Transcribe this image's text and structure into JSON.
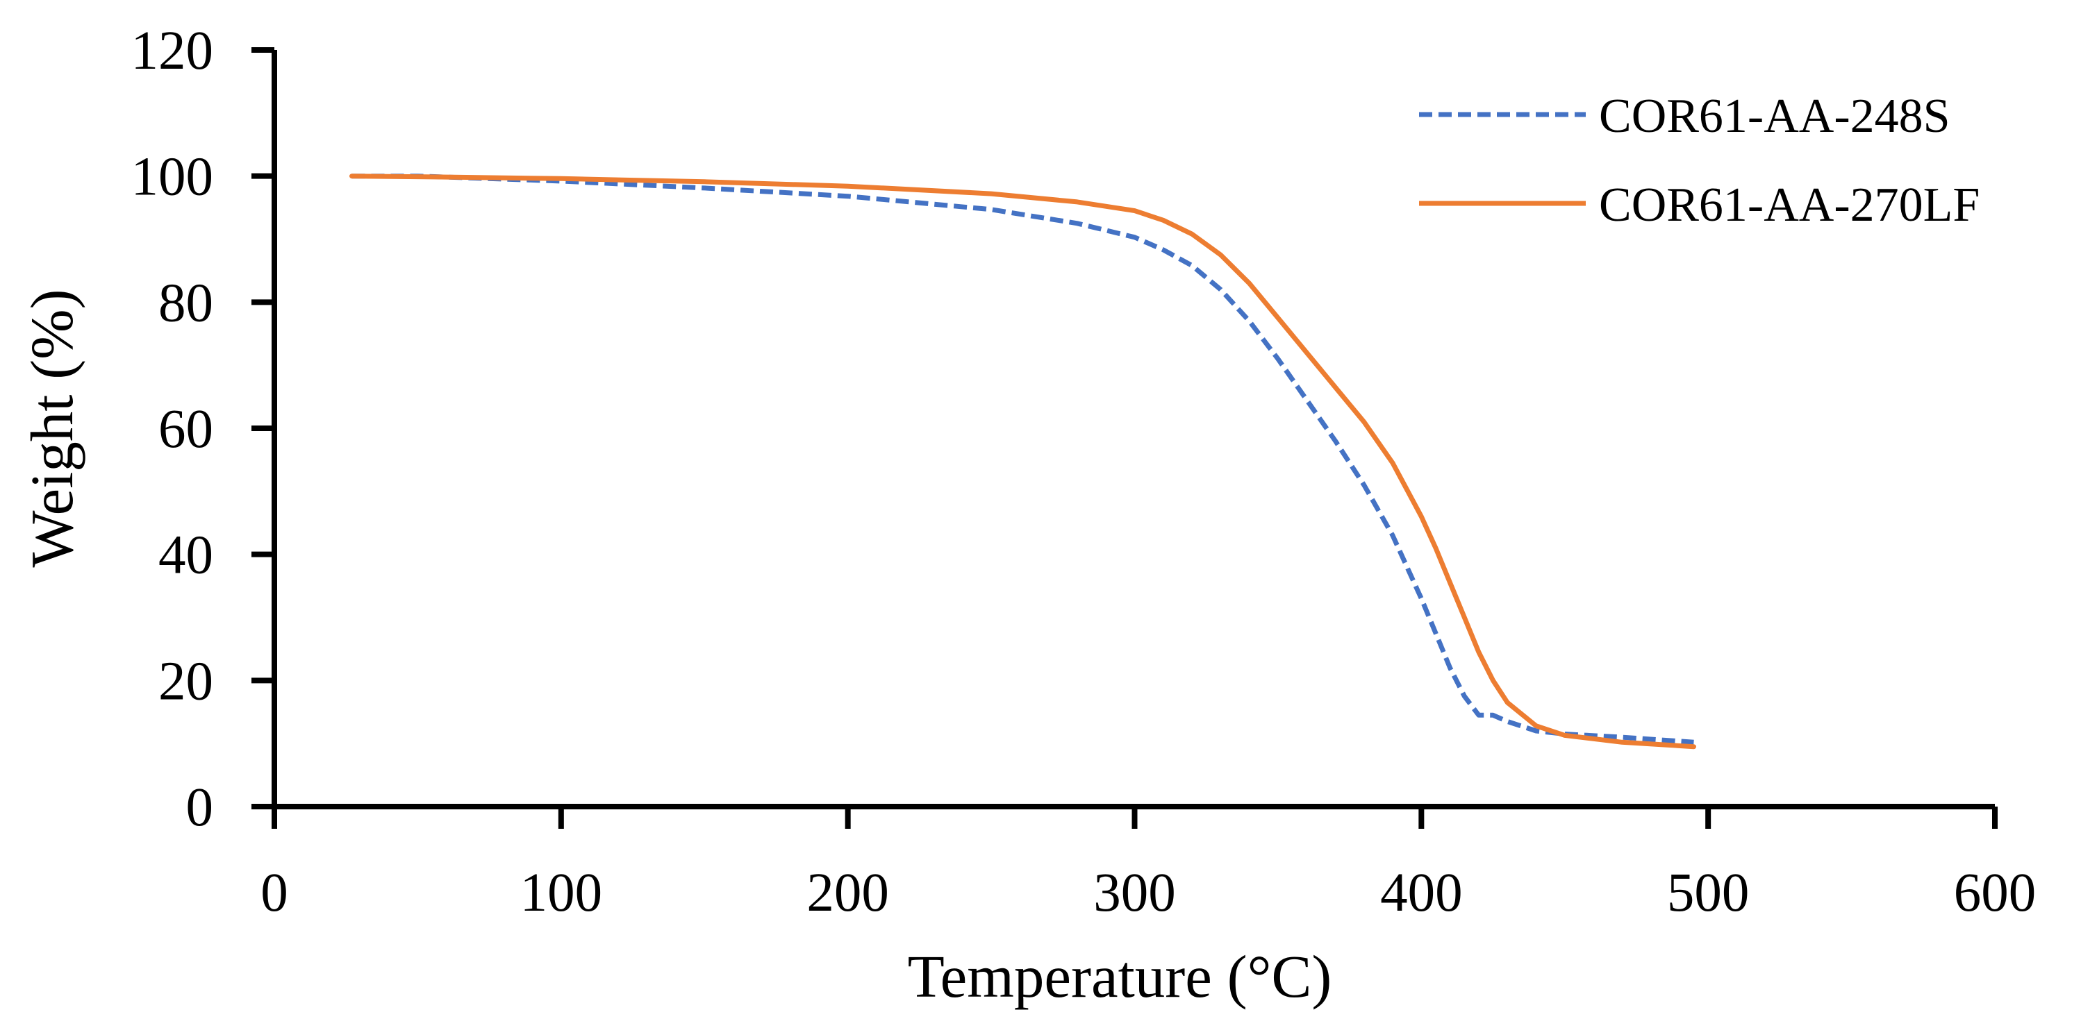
{
  "chart_data": {
    "type": "line",
    "title": "",
    "xlabel": "Temperature (°C)",
    "ylabel": "Weight (%)",
    "xlim": [
      0,
      600
    ],
    "ylim": [
      0,
      120
    ],
    "xticks": [
      0,
      100,
      200,
      300,
      400,
      500,
      600
    ],
    "yticks": [
      0,
      20,
      40,
      60,
      80,
      100,
      120
    ],
    "xtick_labels": [
      "0",
      "100",
      "200",
      "300",
      "400",
      "500",
      "600"
    ],
    "ytick_labels": [
      "0",
      "20",
      "40",
      "60",
      "80",
      "100",
      "120"
    ],
    "grid": false,
    "legend_position": "top-right",
    "series": [
      {
        "name": "COR61-AA-248S",
        "color": "#4472C4",
        "style": "dashed",
        "x": [
          27,
          50,
          100,
          150,
          200,
          250,
          280,
          300,
          310,
          320,
          330,
          340,
          350,
          360,
          370,
          380,
          390,
          400,
          405,
          410,
          415,
          420,
          425,
          430,
          440,
          450,
          470,
          495
        ],
        "y": [
          100,
          100,
          99.2,
          98.1,
          96.8,
          94.7,
          92.5,
          90.3,
          88.3,
          85.8,
          82,
          77,
          71,
          64.5,
          58,
          51,
          43,
          33,
          27.5,
          22,
          17.5,
          14.5,
          14.5,
          13.5,
          12,
          11.5,
          11,
          10.2
        ]
      },
      {
        "name": "COR61-AA-270LF",
        "color": "#ED7D31",
        "style": "solid",
        "x": [
          27,
          50,
          100,
          150,
          200,
          250,
          280,
          300,
          310,
          320,
          330,
          340,
          350,
          360,
          370,
          380,
          390,
          400,
          405,
          410,
          415,
          420,
          425,
          430,
          440,
          450,
          470,
          495
        ],
        "y": [
          100,
          99.9,
          99.6,
          99.1,
          98.4,
          97.2,
          95.9,
          94.5,
          93,
          90.8,
          87.5,
          83,
          77.5,
          72,
          66.5,
          61,
          54.5,
          46,
          41,
          35.5,
          30,
          24.5,
          20,
          16.5,
          12.8,
          11.3,
          10.2,
          9.5
        ]
      }
    ]
  }
}
